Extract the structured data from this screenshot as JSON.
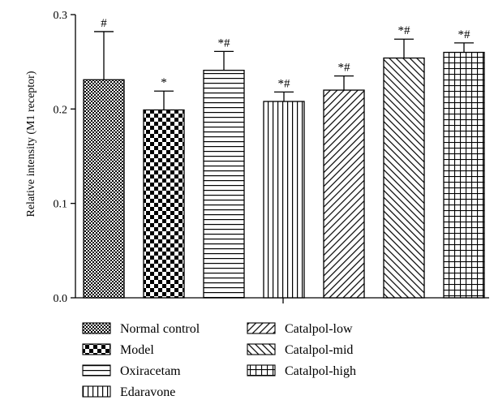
{
  "chart_data": {
    "type": "bar",
    "title": "",
    "xlabel": "",
    "ylabel": "Relative intensity (M1 receptor)",
    "ylim": [
      0,
      0.3
    ],
    "yticks": [
      "0.0",
      "0.1",
      "0.2",
      "0.3"
    ],
    "grid": false,
    "legend_position": "bottom",
    "categories": [
      "Normal control",
      "Model",
      "Oxiracetam",
      "Edaravone",
      "Catalpol-low",
      "Catalpol-mid",
      "Catalpol-high"
    ],
    "values": [
      0.231,
      0.199,
      0.241,
      0.208,
      0.22,
      0.254,
      0.26
    ],
    "errors": [
      0.051,
      0.02,
      0.02,
      0.01,
      0.015,
      0.02,
      0.01
    ],
    "significance": [
      "#",
      "*",
      "*#",
      "*#",
      "*#",
      "*#",
      "*#"
    ],
    "patterns": [
      "dots",
      "checker",
      "hlines",
      "vlines",
      "diag-right",
      "diag-left",
      "grid"
    ]
  },
  "colors": {
    "ink": "#000000",
    "background": "#ffffff"
  }
}
